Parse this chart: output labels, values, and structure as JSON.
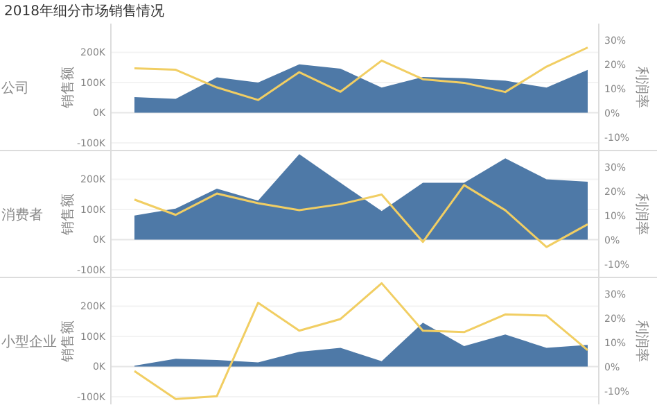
{
  "chart_data": [
    {
      "type": "area",
      "title": "2018年细分市场销售情况",
      "subtitle": "公司",
      "ylabel": "销售额",
      "y2label": "利润率",
      "categories": [
        null,
        null,
        null,
        null,
        null,
        null,
        null,
        null,
        null,
        null,
        null,
        null
      ],
      "series": [
        {
          "type": "area",
          "color": "#4e79a7",
          "values": [
            52,
            46,
            117,
            100,
            160,
            146,
            83,
            118,
            114,
            106,
            83,
            142
          ]
        },
        {
          "type": "line",
          "axis": "y2",
          "color": "#f1ce63",
          "values": [
            18.5,
            17.9,
            10.6,
            5.4,
            16.9,
            8.8,
            21.7,
            14.0,
            12.5,
            8.7,
            19.2,
            27.1
          ]
        }
      ],
      "ylim": [
        -125,
        295
      ],
      "yticks": [
        {
          "value": -100,
          "label": "-100K"
        },
        {
          "value": 0,
          "label": "0K"
        },
        {
          "value": 100,
          "label": "100K"
        },
        {
          "value": 200,
          "label": "200K"
        }
      ],
      "y2lim": [
        -15.5,
        37
      ],
      "y2ticks": [
        {
          "value": -10,
          "label": "-10%"
        },
        {
          "value": 0,
          "label": "0%"
        },
        {
          "value": 10,
          "label": "10%"
        },
        {
          "value": 20,
          "label": "20%"
        },
        {
          "value": 30,
          "label": "30%"
        }
      ],
      "grid": "y"
    },
    {
      "type": "area",
      "subtitle": "消费者",
      "ylabel": "销售额",
      "y2label": "利润率",
      "categories": [
        null,
        null,
        null,
        null,
        null,
        null,
        null,
        null,
        null,
        null,
        null,
        null
      ],
      "series": [
        {
          "type": "area",
          "color": "#4e79a7",
          "values": [
            80,
            103,
            169,
            129,
            283,
            188,
            95,
            188,
            188,
            269,
            200,
            192
          ]
        },
        {
          "type": "line",
          "axis": "y2",
          "color": "#f1ce63",
          "values": [
            16.7,
            10.4,
            19.2,
            15.2,
            12.3,
            14.8,
            18.8,
            -0.8,
            22.7,
            12.3,
            -2.9,
            6.5
          ]
        }
      ],
      "ylim": [
        -125,
        295
      ],
      "yticks": [
        {
          "value": -100,
          "label": "-100K"
        },
        {
          "value": 0,
          "label": "0K"
        },
        {
          "value": 100,
          "label": "100K"
        },
        {
          "value": 200,
          "label": "200K"
        }
      ],
      "y2lim": [
        -15.5,
        37
      ],
      "y2ticks": [
        {
          "value": -10,
          "label": "-10%"
        },
        {
          "value": 0,
          "label": "0%"
        },
        {
          "value": 10,
          "label": "10%"
        },
        {
          "value": 20,
          "label": "20%"
        },
        {
          "value": 30,
          "label": "30%"
        }
      ],
      "grid": "y"
    },
    {
      "type": "area",
      "subtitle": "小型企业",
      "ylabel": "销售额",
      "y2label": "利润率",
      "categories": [
        null,
        null,
        null,
        null,
        null,
        null,
        null,
        null,
        null,
        null,
        null,
        null
      ],
      "series": [
        {
          "type": "area",
          "color": "#4e79a7",
          "values": [
            3,
            26,
            22,
            14,
            49,
            62,
            18,
            145,
            68,
            106,
            62,
            72
          ]
        },
        {
          "type": "line",
          "axis": "y2",
          "color": "#f1ce63",
          "values": [
            -1.7,
            -13.3,
            -12.1,
            26.5,
            15.0,
            19.8,
            34.6,
            15.0,
            14.4,
            21.7,
            21.2,
            6.9
          ]
        }
      ],
      "ylim": [
        -125,
        295
      ],
      "yticks": [
        {
          "value": -100,
          "label": "-100K"
        },
        {
          "value": 0,
          "label": "0K"
        },
        {
          "value": 100,
          "label": "100K"
        },
        {
          "value": 200,
          "label": "200K"
        }
      ],
      "y2lim": [
        -15.5,
        37
      ],
      "y2ticks": [
        {
          "value": -10,
          "label": "-10%"
        },
        {
          "value": 0,
          "label": "0%"
        },
        {
          "value": 10,
          "label": "10%"
        },
        {
          "value": 20,
          "label": "20%"
        },
        {
          "value": 30,
          "label": "30%"
        }
      ],
      "grid": "y"
    }
  ]
}
